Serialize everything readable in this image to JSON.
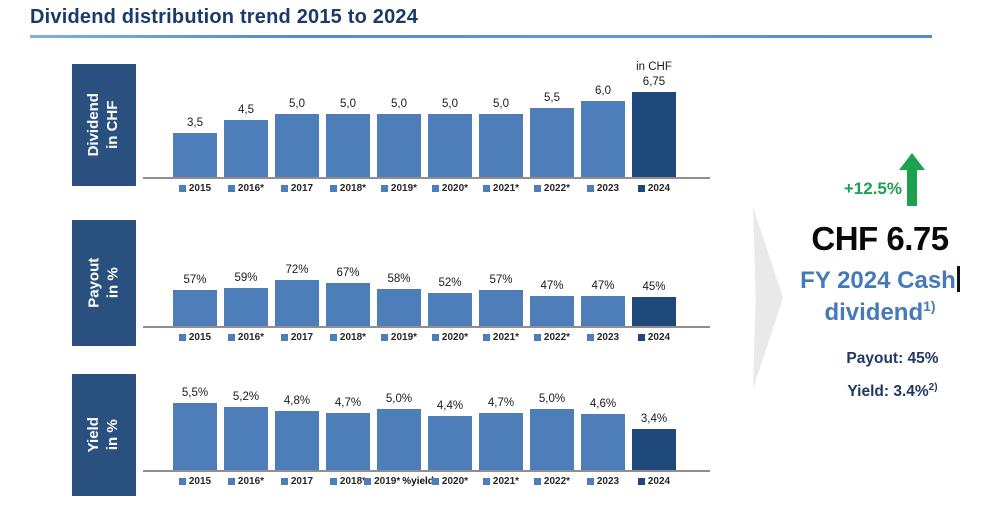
{
  "title": "Dividend distribution trend 2015 to 2024",
  "colors": {
    "bar_blue": "#4d7eba",
    "bar_dark_2024": "#20497b",
    "row_label_bg": "#2a5080",
    "title_navy": "#1c3a68",
    "underline_blue": "#5b9bd5",
    "axis_gray": "#8f8f8f",
    "green": "#1ca14f",
    "highlight_text_blue": "#4579b8",
    "stat_navy": "#1f3864",
    "chevron_gray": "#e9e9e9"
  },
  "chart_data": [
    {
      "type": "bar",
      "row_label": [
        "Dividend",
        "in CHF"
      ],
      "categories": [
        "2015",
        "2016*",
        "2017",
        "2018*",
        "2019*",
        "2020*",
        "2021*",
        "2022*",
        "2023",
        "2024"
      ],
      "values": [
        3.5,
        4.5,
        5.0,
        5.0,
        5.0,
        5.0,
        5.0,
        5.5,
        6.0,
        6.75
      ],
      "value_labels": [
        "3,5",
        "4,5",
        "5,0",
        "5,0",
        "5,0",
        "5,0",
        "5,0",
        "5,5",
        "6,0",
        "6,75"
      ],
      "unit_note_last_bar": "in CHF",
      "highlight_last": true,
      "ylim": [
        0,
        7.5
      ],
      "grid": false,
      "legend": false
    },
    {
      "type": "bar",
      "row_label": [
        "Payout",
        "in %"
      ],
      "categories": [
        "2015",
        "2016*",
        "2017",
        "2018*",
        "2019*",
        "2020*",
        "2021*",
        "2022*",
        "2023",
        "2024"
      ],
      "values": [
        57,
        59,
        72,
        67,
        58,
        52,
        57,
        47,
        47,
        45
      ],
      "value_labels": [
        "57%",
        "59%",
        "72%",
        "67%",
        "58%",
        "52%",
        "57%",
        "47%",
        "47%",
        "45%"
      ],
      "highlight_last": true,
      "ylim": [
        0,
        100
      ],
      "grid": false,
      "legend": false
    },
    {
      "type": "bar",
      "row_label": [
        "Yield",
        "in %"
      ],
      "categories": [
        "2015",
        "2016*",
        "2017",
        "2018*",
        "2019*",
        "2020*",
        "2021*",
        "2022*",
        "2023",
        "2024"
      ],
      "values": [
        5.5,
        5.2,
        4.8,
        4.7,
        5.0,
        4.4,
        4.7,
        5.0,
        4.6,
        3.4
      ],
      "value_labels": [
        "5,5%",
        "5,2%",
        "4,8%",
        "4,7%",
        "5,0%",
        "4,4%",
        "4,7%",
        "5,0%",
        "4,6%",
        "3,4%"
      ],
      "highlight_last": true,
      "ylim": [
        0,
        6
      ],
      "grid": false,
      "legend": false,
      "axis_overlap_artifact": {
        "text": "%yield",
        "after_category_index": 4
      }
    }
  ],
  "summary": {
    "change_label": "+12.5%",
    "headline": "CHF 6.75",
    "subline_1": "FY 2024 Cash",
    "subline_2": "dividend",
    "subline_2_sup": "1)",
    "payout_stat": "Payout: 45%",
    "yield_stat": "Yield: 3.4%",
    "yield_stat_sup": "2)"
  }
}
